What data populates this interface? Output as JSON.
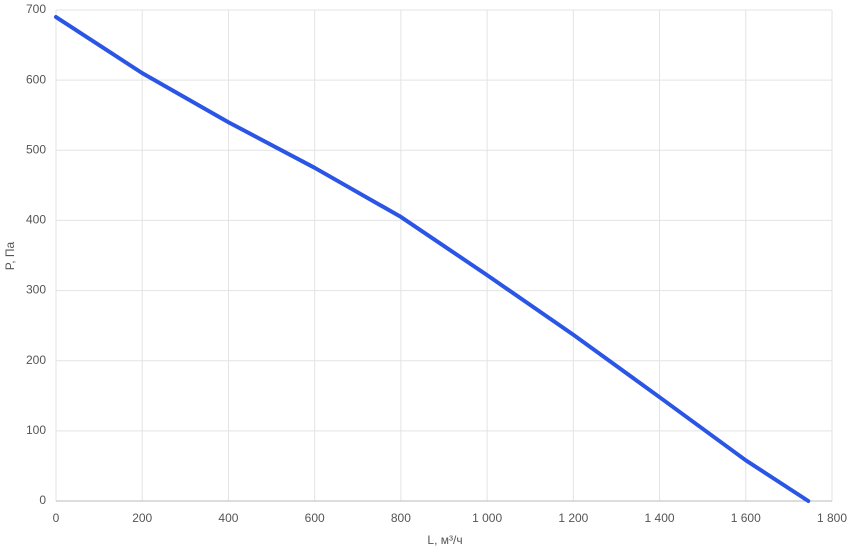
{
  "chart_data": {
    "type": "line",
    "x_label": "L, м³/ч",
    "y_label": "P, Па",
    "x": [
      0,
      200,
      400,
      600,
      800,
      1000,
      1200,
      1400,
      1600,
      1745
    ],
    "series": [
      {
        "color": "#2a55e5",
        "values": [
          690,
          610,
          540,
          475,
          405,
          322,
          237,
          148,
          58,
          0
        ]
      }
    ],
    "xlim": [
      0,
      1800
    ],
    "xticks": [
      0,
      200,
      400,
      600,
      800,
      {
        "value": 1000,
        "label": "1 000"
      },
      {
        "value": 1200,
        "label": "1 200"
      },
      {
        "value": 1400,
        "label": "1 400"
      },
      {
        "value": 1600,
        "label": "1 600"
      },
      {
        "value": 1800,
        "label": "1 800"
      }
    ],
    "ylim": [
      0,
      700
    ],
    "yticks": [
      0,
      100,
      200,
      300,
      400,
      500,
      600,
      700
    ],
    "grid": true
  }
}
